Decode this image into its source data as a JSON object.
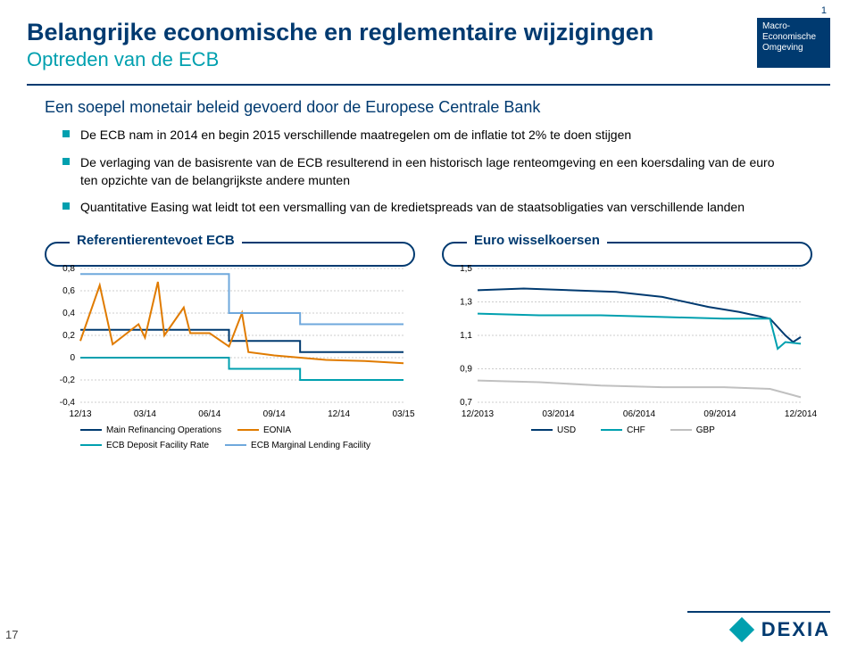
{
  "colors": {
    "navy": "#003a70",
    "teal": "#00a0af",
    "grey": "#c0c0c0",
    "orange": "#e07b00",
    "ltblue": "#6fa8dc",
    "dkline": "#003a70"
  },
  "header": {
    "title": "Belangrijke economische en reglementaire wijzigingen",
    "subtitle": "Optreden van de ECB",
    "badge_num": "1",
    "badge_text": "Macro-Economische Omgeving"
  },
  "intro": "Een soepel monetair beleid gevoerd door de Europese Centrale Bank",
  "bullets": [
    "De ECB nam in 2014 en begin 2015 verschillende maatregelen om de inflatie tot 2% te doen stijgen",
    "De verlaging van de basisrente van de ECB resulterend in een historisch lage renteomgeving en een koersdaling van de euro ten opzichte van de belangrijkste andere munten",
    "Quantitative Easing wat leidt tot een versmalling van de kredietspreads van de staatsobligaties van verschillende landen"
  ],
  "chart1": {
    "title": "Referentierentevoet ECB",
    "type": "line",
    "ylim": [
      -0.4,
      0.8
    ],
    "ytick_step": 0.2,
    "yticks": [
      "0,8",
      "0,6",
      "0,4",
      "0,2",
      "0",
      "-0,2",
      "-0,4"
    ],
    "xticks": [
      "12/13",
      "03/14",
      "06/14",
      "09/14",
      "12/14",
      "03/15"
    ],
    "series": {
      "mro": {
        "color": "#003a70",
        "label": "Main Refinancing Operations",
        "pts": [
          [
            0,
            0.25
          ],
          [
            2.3,
            0.25
          ],
          [
            2.3,
            0.15
          ],
          [
            3.4,
            0.15
          ],
          [
            3.4,
            0.05
          ],
          [
            5,
            0.05
          ]
        ]
      },
      "deposit": {
        "color": "#00a0af",
        "label": "ECB Deposit Facility Rate",
        "pts": [
          [
            0,
            0.0
          ],
          [
            2.3,
            0.0
          ],
          [
            2.3,
            -0.1
          ],
          [
            3.4,
            -0.1
          ],
          [
            3.4,
            -0.2
          ],
          [
            5,
            -0.2
          ]
        ]
      },
      "eonia": {
        "color": "#e07b00",
        "label": "EONIA",
        "pts": [
          [
            0,
            0.15
          ],
          [
            0.3,
            0.65
          ],
          [
            0.5,
            0.12
          ],
          [
            0.9,
            0.3
          ],
          [
            1.0,
            0.18
          ],
          [
            1.2,
            0.68
          ],
          [
            1.3,
            0.2
          ],
          [
            1.6,
            0.45
          ],
          [
            1.7,
            0.22
          ],
          [
            2.0,
            0.22
          ],
          [
            2.3,
            0.1
          ],
          [
            2.5,
            0.4
          ],
          [
            2.6,
            0.05
          ],
          [
            3.0,
            0.02
          ],
          [
            3.4,
            0.0
          ],
          [
            3.8,
            -0.02
          ],
          [
            4.4,
            -0.03
          ],
          [
            5.0,
            -0.05
          ]
        ]
      },
      "marginal": {
        "color": "#6fa8dc",
        "label": "ECB Marginal Lending Facility",
        "pts": [
          [
            0,
            0.75
          ],
          [
            2.3,
            0.75
          ],
          [
            2.3,
            0.4
          ],
          [
            3.4,
            0.4
          ],
          [
            3.4,
            0.3
          ],
          [
            5,
            0.3
          ]
        ]
      }
    }
  },
  "chart2": {
    "title": "Euro wisselkoersen",
    "type": "line",
    "ylim": [
      0.7,
      1.5
    ],
    "ytick_step": 0.2,
    "yticks": [
      "1,5",
      "1,3",
      "1,1",
      "0,9",
      "0,7"
    ],
    "xticks": [
      "12/2013",
      "03/2014",
      "06/2014",
      "09/2014",
      "12/2014"
    ],
    "series": {
      "usd": {
        "color": "#003a70",
        "label": "USD",
        "pts": [
          [
            0,
            1.37
          ],
          [
            0.6,
            1.38
          ],
          [
            1.2,
            1.37
          ],
          [
            1.8,
            1.36
          ],
          [
            2.4,
            1.33
          ],
          [
            3.0,
            1.27
          ],
          [
            3.4,
            1.24
          ],
          [
            3.8,
            1.2
          ],
          [
            4.0,
            1.1
          ],
          [
            4.1,
            1.06
          ],
          [
            4.2,
            1.09
          ]
        ]
      },
      "chf": {
        "color": "#00a0af",
        "label": "CHF",
        "pts": [
          [
            0,
            1.23
          ],
          [
            0.8,
            1.22
          ],
          [
            1.6,
            1.22
          ],
          [
            2.4,
            1.21
          ],
          [
            3.2,
            1.2
          ],
          [
            3.8,
            1.2
          ],
          [
            3.9,
            1.02
          ],
          [
            4.0,
            1.06
          ],
          [
            4.2,
            1.05
          ]
        ]
      },
      "gbp": {
        "color": "#c0c0c0",
        "label": "GBP",
        "pts": [
          [
            0,
            0.83
          ],
          [
            0.8,
            0.82
          ],
          [
            1.6,
            0.8
          ],
          [
            2.4,
            0.79
          ],
          [
            3.2,
            0.79
          ],
          [
            3.8,
            0.78
          ],
          [
            4.2,
            0.73
          ]
        ]
      }
    }
  },
  "footer": {
    "page": "17",
    "logo": "DEXIA"
  }
}
